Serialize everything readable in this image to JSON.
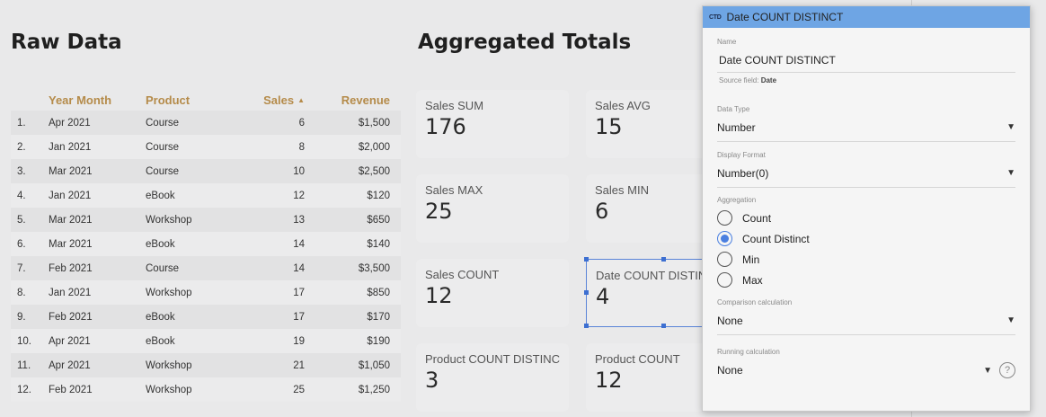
{
  "raw_title": "Raw Data",
  "agg_title": "Aggregated Totals",
  "table": {
    "headers": {
      "ym": "Year Month",
      "product": "Product",
      "sales": "Sales",
      "sort_arrow": "▲",
      "revenue": "Revenue"
    },
    "rows": [
      {
        "idx": "1.",
        "ym": "Apr 2021",
        "product": "Course",
        "sales": "6",
        "revenue": "$1,500"
      },
      {
        "idx": "2.",
        "ym": "Jan 2021",
        "product": "Course",
        "sales": "8",
        "revenue": "$2,000"
      },
      {
        "idx": "3.",
        "ym": "Mar 2021",
        "product": "Course",
        "sales": "10",
        "revenue": "$2,500"
      },
      {
        "idx": "4.",
        "ym": "Jan 2021",
        "product": "eBook",
        "sales": "12",
        "revenue": "$120"
      },
      {
        "idx": "5.",
        "ym": "Mar 2021",
        "product": "Workshop",
        "sales": "13",
        "revenue": "$650"
      },
      {
        "idx": "6.",
        "ym": "Mar 2021",
        "product": "eBook",
        "sales": "14",
        "revenue": "$140"
      },
      {
        "idx": "7.",
        "ym": "Feb 2021",
        "product": "Course",
        "sales": "14",
        "revenue": "$3,500"
      },
      {
        "idx": "8.",
        "ym": "Jan 2021",
        "product": "Workshop",
        "sales": "17",
        "revenue": "$850"
      },
      {
        "idx": "9.",
        "ym": "Feb 2021",
        "product": "eBook",
        "sales": "17",
        "revenue": "$170"
      },
      {
        "idx": "10.",
        "ym": "Apr 2021",
        "product": "eBook",
        "sales": "19",
        "revenue": "$190"
      },
      {
        "idx": "11.",
        "ym": "Apr 2021",
        "product": "Workshop",
        "sales": "21",
        "revenue": "$1,050"
      },
      {
        "idx": "12.",
        "ym": "Feb 2021",
        "product": "Workshop",
        "sales": "25",
        "revenue": "$1,250"
      }
    ]
  },
  "cards": {
    "sales_sum": {
      "label": "Sales SUM",
      "value": "176"
    },
    "sales_avg": {
      "label": "Sales AVG",
      "value": "15"
    },
    "sales_max": {
      "label": "Sales MAX",
      "value": "25"
    },
    "sales_min": {
      "label": "Sales MIN",
      "value": "6"
    },
    "sales_count": {
      "label": "Sales COUNT",
      "value": "12"
    },
    "date_count_distinct": {
      "label": "Date COUNT DISTINCT",
      "value": "4"
    },
    "product_count_distinct": {
      "label": "Product COUNT DISTINCT",
      "value": "3"
    },
    "product_count": {
      "label": "Product COUNT",
      "value": "12"
    }
  },
  "panel": {
    "header_icon": "CTD",
    "header_title": "Date COUNT DISTINCT",
    "name_label": "Name",
    "name_value": "Date COUNT DISTINCT",
    "source_field_label": "Source field:",
    "source_field_value": "Date",
    "data_type_label": "Data Type",
    "data_type_value": "Number",
    "display_format_label": "Display Format",
    "display_format_value": "Number(0)",
    "aggregation_label": "Aggregation",
    "aggregation_options": [
      "Count",
      "Count Distinct",
      "Min",
      "Max"
    ],
    "aggregation_selected": "Count Distinct",
    "comparison_label": "Comparison calculation",
    "comparison_value": "None",
    "running_label": "Running calculation",
    "running_value": "None",
    "caret": "▼",
    "help": "?"
  },
  "colors": {
    "accent": "#4a7fe0",
    "header_bg": "#6ea5e4",
    "table_header_text": "#b58b4a"
  }
}
